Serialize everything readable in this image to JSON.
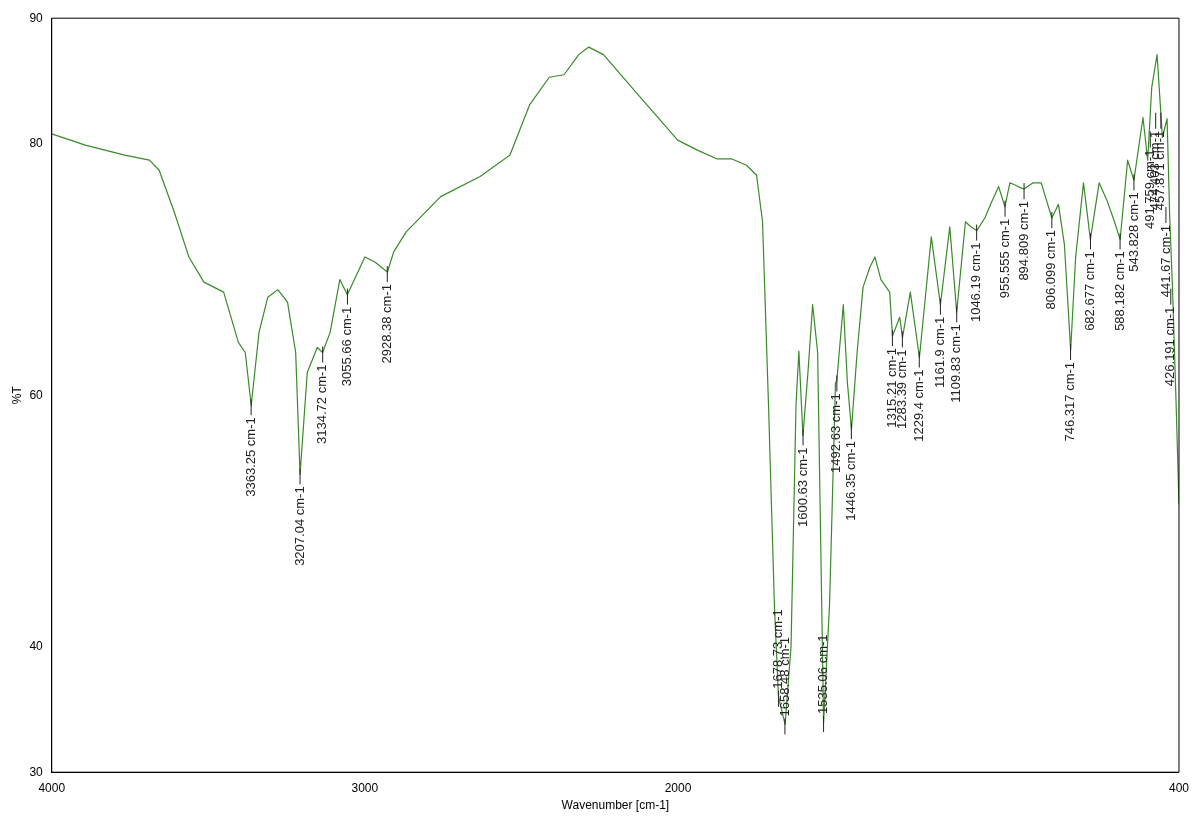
{
  "chart_data": {
    "type": "line",
    "xlabel": "Wavenumber [cm-1]",
    "ylabel": "%T",
    "xlim": [
      4000,
      400
    ],
    "ylim": [
      30,
      90
    ],
    "xticks": [
      4000,
      3000,
      2000,
      400
    ],
    "yticks": [
      30,
      40,
      60,
      80,
      90
    ],
    "marker": "none",
    "x": [
      4000,
      3893,
      3767,
      3688,
      3657,
      3609,
      3562,
      3514,
      3451,
      3404,
      3382,
      3363,
      3338,
      3310,
      3278,
      3247,
      3221,
      3207,
      3184,
      3152,
      3135,
      3111,
      3080,
      3056,
      3000,
      2968,
      2928,
      2908,
      2868,
      2758,
      2632,
      2537,
      2474,
      2411,
      2364,
      2317,
      2285,
      2238,
      2127,
      2001,
      1938,
      1875,
      1828,
      1781,
      1749,
      1730,
      1711,
      1692,
      1679,
      1658,
      1639,
      1623,
      1614,
      1601,
      1585,
      1570,
      1554,
      1541,
      1535,
      1516,
      1497,
      1493,
      1472,
      1459,
      1446,
      1428,
      1409,
      1387,
      1371,
      1352,
      1324,
      1315,
      1292,
      1283,
      1258,
      1229,
      1191,
      1162,
      1132,
      1110,
      1082,
      1065,
      1046,
      1020,
      998,
      976,
      956,
      940,
      895,
      866,
      840,
      806,
      785,
      766,
      746,
      730,
      705,
      683,
      655,
      630,
      606,
      588,
      564,
      544,
      515,
      500,
      487,
      470,
      462,
      453,
      438,
      430,
      420,
      410,
      400
    ],
    "series": [
      {
        "color": "#3a8a2a",
        "values": [
          80.8,
          79.9,
          79.1,
          78.7,
          77.9,
          74.6,
          71.0,
          69.0,
          68.2,
          64.2,
          63.4,
          59.2,
          65.0,
          67.8,
          68.4,
          67.4,
          63.4,
          53.7,
          61.8,
          63.8,
          63.4,
          65.0,
          69.2,
          68.0,
          71.0,
          70.6,
          69.8,
          71.4,
          73.0,
          75.8,
          77.4,
          79.1,
          83.1,
          85.3,
          85.5,
          87.1,
          87.7,
          87.1,
          83.9,
          80.3,
          79.5,
          78.8,
          78.8,
          78.3,
          77.5,
          73.8,
          59.3,
          43.2,
          36.0,
          33.8,
          40.0,
          59.3,
          63.5,
          56.8,
          61.8,
          67.2,
          63.4,
          43.3,
          34.0,
          43.3,
          61.0,
          61.1,
          67.2,
          61.0,
          57.3,
          63.4,
          68.6,
          70.2,
          71.0,
          69.2,
          68.2,
          64.7,
          66.2,
          64.6,
          68.2,
          63.0,
          72.6,
          67.2,
          73.4,
          66.6,
          73.8,
          73.4,
          73.1,
          74.1,
          75.4,
          76.6,
          75.0,
          76.9,
          76.4,
          76.9,
          76.9,
          74.1,
          75.2,
          72.0,
          63.6,
          71.0,
          76.9,
          72.4,
          76.9,
          75.5,
          73.8,
          72.4,
          78.7,
          77.1,
          82.1,
          78.7,
          84.5,
          87.1,
          84.0,
          80.5,
          82.0,
          74.5,
          68.0,
          60.0,
          51.3
        ]
      }
    ],
    "annotations": [
      {
        "text": "3363.25 cm-1",
        "x": 3363.25,
        "y": 59.2
      },
      {
        "text": "3207.04 cm-1",
        "x": 3207.04,
        "y": 53.7
      },
      {
        "text": "3134.72 cm-1",
        "x": 3134.72,
        "y": 63.4
      },
      {
        "text": "3055.66 cm-1",
        "x": 3055.66,
        "y": 68.0
      },
      {
        "text": "2928.38 cm-1",
        "x": 2928.38,
        "y": 69.8
      },
      {
        "text": "1678.73 cm-1",
        "x": 1678.73,
        "y": 36.0
      },
      {
        "text": "1658.48 cm-1",
        "x": 1658.48,
        "y": 33.8
      },
      {
        "text": "1600.63 cm-1",
        "x": 1600.63,
        "y": 56.8
      },
      {
        "text": "1535.06 cm-1",
        "x": 1535.06,
        "y": 34.0
      },
      {
        "text": "1492.63 cm-1",
        "x": 1492.63,
        "y": 61.1
      },
      {
        "text": "1446.35 cm-1",
        "x": 1446.35,
        "y": 57.3
      },
      {
        "text": "1315.21 cm-1",
        "x": 1315.21,
        "y": 64.7
      },
      {
        "text": "1283.39 cm-1",
        "x": 1283.39,
        "y": 64.6
      },
      {
        "text": "1229.4 cm-1",
        "x": 1229.4,
        "y": 63.0
      },
      {
        "text": "1161.9 cm-1",
        "x": 1161.9,
        "y": 67.2
      },
      {
        "text": "1109.83 cm-1",
        "x": 1109.83,
        "y": 66.6
      },
      {
        "text": "1046.19 cm-1",
        "x": 1046.19,
        "y": 73.1
      },
      {
        "text": "955.555 cm-1",
        "x": 955.555,
        "y": 75.0
      },
      {
        "text": "894.809 cm-1",
        "x": 894.809,
        "y": 76.4
      },
      {
        "text": "806.099 cm-1",
        "x": 806.099,
        "y": 74.1
      },
      {
        "text": "746.317 cm-1",
        "x": 746.317,
        "y": 63.6
      },
      {
        "text": "682.677 cm-1",
        "x": 682.677,
        "y": 72.4
      },
      {
        "text": "588.182 cm-1",
        "x": 588.182,
        "y": 72.4
      },
      {
        "text": "543.828 cm-1",
        "x": 543.828,
        "y": 77.1
      },
      {
        "text": "491.759 cm-1",
        "x": 491.759,
        "y": 80.5
      },
      {
        "text": "474.403 cm-1",
        "x": 474.403,
        "y": 82.0
      },
      {
        "text": "457.871 cm-1",
        "x": 457.871,
        "y": 82.0
      },
      {
        "text": "441.67 cm-1",
        "x": 441.67,
        "y": 74.5
      },
      {
        "text": "426.191 cm-1",
        "x": 426.191,
        "y": 68.0
      }
    ]
  }
}
